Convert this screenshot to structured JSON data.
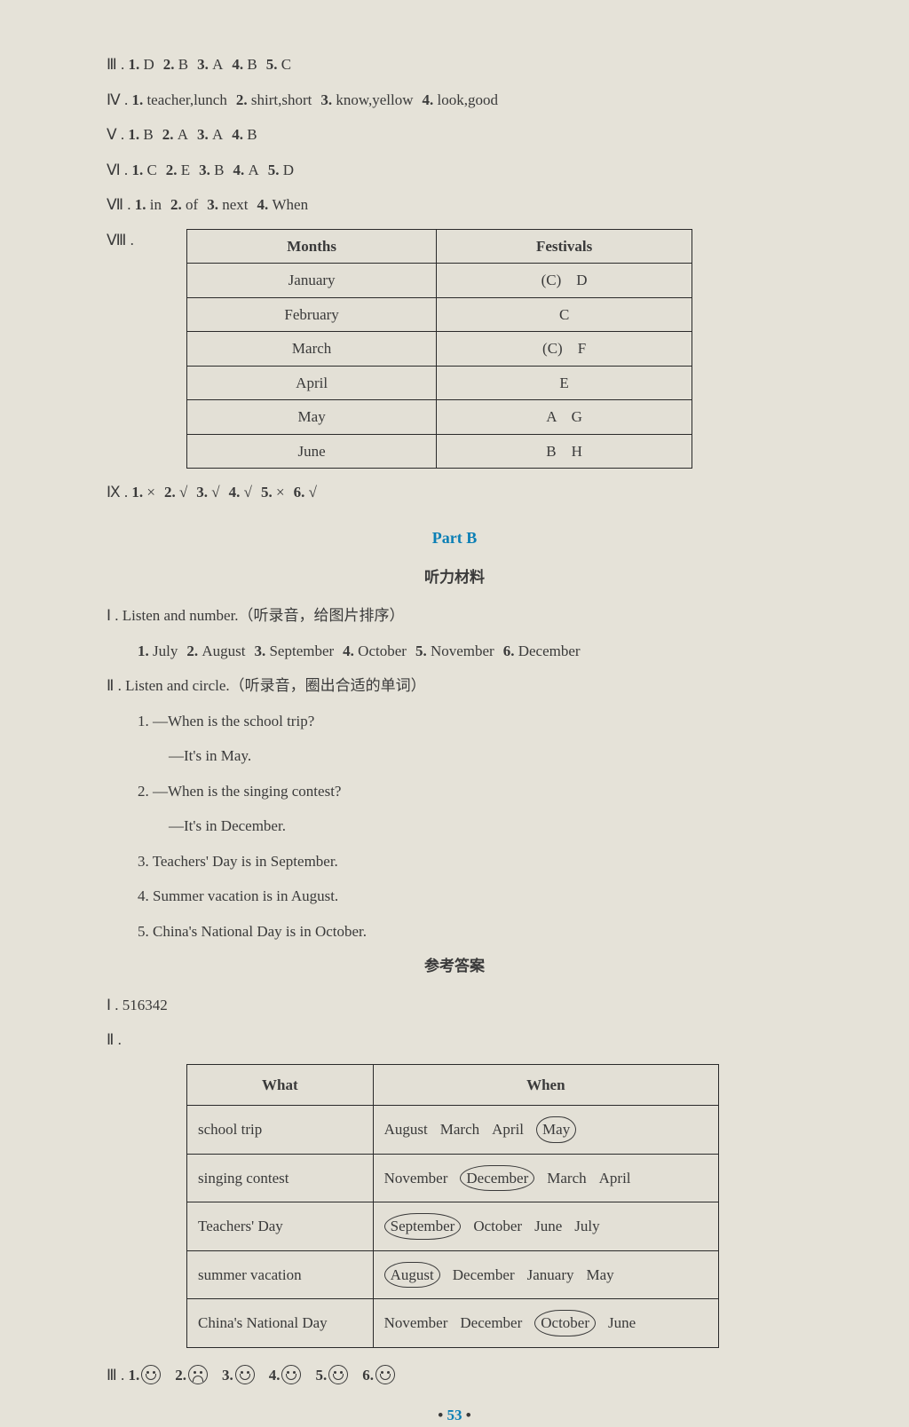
{
  "s3": {
    "label": "Ⅲ .",
    "items": [
      "1. D",
      "2. B",
      "3. A",
      "4. B",
      "5. C"
    ]
  },
  "s4": {
    "label": "Ⅳ .",
    "items": [
      "1. teacher,lunch",
      "2. shirt,short",
      "3. know,yellow",
      "4. look,good"
    ]
  },
  "s5": {
    "label": "Ⅴ .",
    "items": [
      "1. B",
      "2. A",
      "3. A",
      "4. B"
    ]
  },
  "s6": {
    "label": "Ⅵ .",
    "items": [
      "1. C",
      "2. E",
      "3. B",
      "4. A",
      "5. D"
    ]
  },
  "s7": {
    "label": "Ⅶ .",
    "items": [
      "1. in",
      "2. of",
      "3. next",
      "4. When"
    ]
  },
  "s8": {
    "label": "Ⅷ ."
  },
  "table1": {
    "headers": [
      "Months",
      "Festivals"
    ],
    "rows": [
      [
        "January",
        "(C)　D"
      ],
      [
        "February",
        "C"
      ],
      [
        "March",
        "(C)　F"
      ],
      [
        "April",
        "E"
      ],
      [
        "May",
        "A　G"
      ],
      [
        "June",
        "B　H"
      ]
    ]
  },
  "s9": {
    "label": "Ⅸ .",
    "items": [
      "1. ×",
      "2. √",
      "3. √",
      "4. √",
      "5. ×",
      "6. √"
    ]
  },
  "partB": "Part B",
  "listeningHeading": "听力材料",
  "L1": {
    "title": "Ⅰ . Listen and number.（听录音，给图片排序）",
    "items": [
      "1. July",
      "2. August",
      "3. September",
      "4. October",
      "5. November",
      "6. December"
    ]
  },
  "L2": {
    "title": "Ⅱ . Listen and circle.（听录音，圈出合适的单词）",
    "q1a": "1. —When is the school trip?",
    "q1b": "—It's in May.",
    "q2a": "2. —When is the singing contest?",
    "q2b": "—It's in December.",
    "q3": "3. Teachers' Day is in September.",
    "q4": "4. Summer vacation is in August.",
    "q5": "5. China's National Day is in October."
  },
  "answersHeading": "参考答案",
  "A1": {
    "label": "Ⅰ .",
    "val": "516342"
  },
  "A2": {
    "label": "Ⅱ ."
  },
  "table2": {
    "headers": [
      "What",
      "When"
    ],
    "rows": [
      {
        "what": "school trip",
        "opts": [
          "August",
          "March",
          "April"
        ],
        "circled": "May",
        "circledPos": 3
      },
      {
        "what": "singing contest",
        "opts": [
          "November",
          "March",
          "April"
        ],
        "circled": "December",
        "circledPos": 1
      },
      {
        "what": "Teachers' Day",
        "opts": [
          "October",
          "June",
          "July"
        ],
        "circled": "September",
        "circledPos": 0
      },
      {
        "what": "summer vacation",
        "opts": [
          "December",
          "January",
          "May"
        ],
        "circled": "August",
        "circledPos": 0
      },
      {
        "what": "China's National Day",
        "opts": [
          "November",
          "December",
          "June"
        ],
        "circled": "October",
        "circledPos": 2
      }
    ]
  },
  "A3": {
    "label": "Ⅲ .",
    "items": [
      {
        "n": "1.",
        "mood": "happy"
      },
      {
        "n": "2.",
        "mood": "sad"
      },
      {
        "n": "3.",
        "mood": "happy"
      },
      {
        "n": "4.",
        "mood": "happy"
      },
      {
        "n": "5.",
        "mood": "happy"
      },
      {
        "n": "6.",
        "mood": "happy"
      }
    ]
  },
  "pageNum": "53",
  "dot": "•"
}
